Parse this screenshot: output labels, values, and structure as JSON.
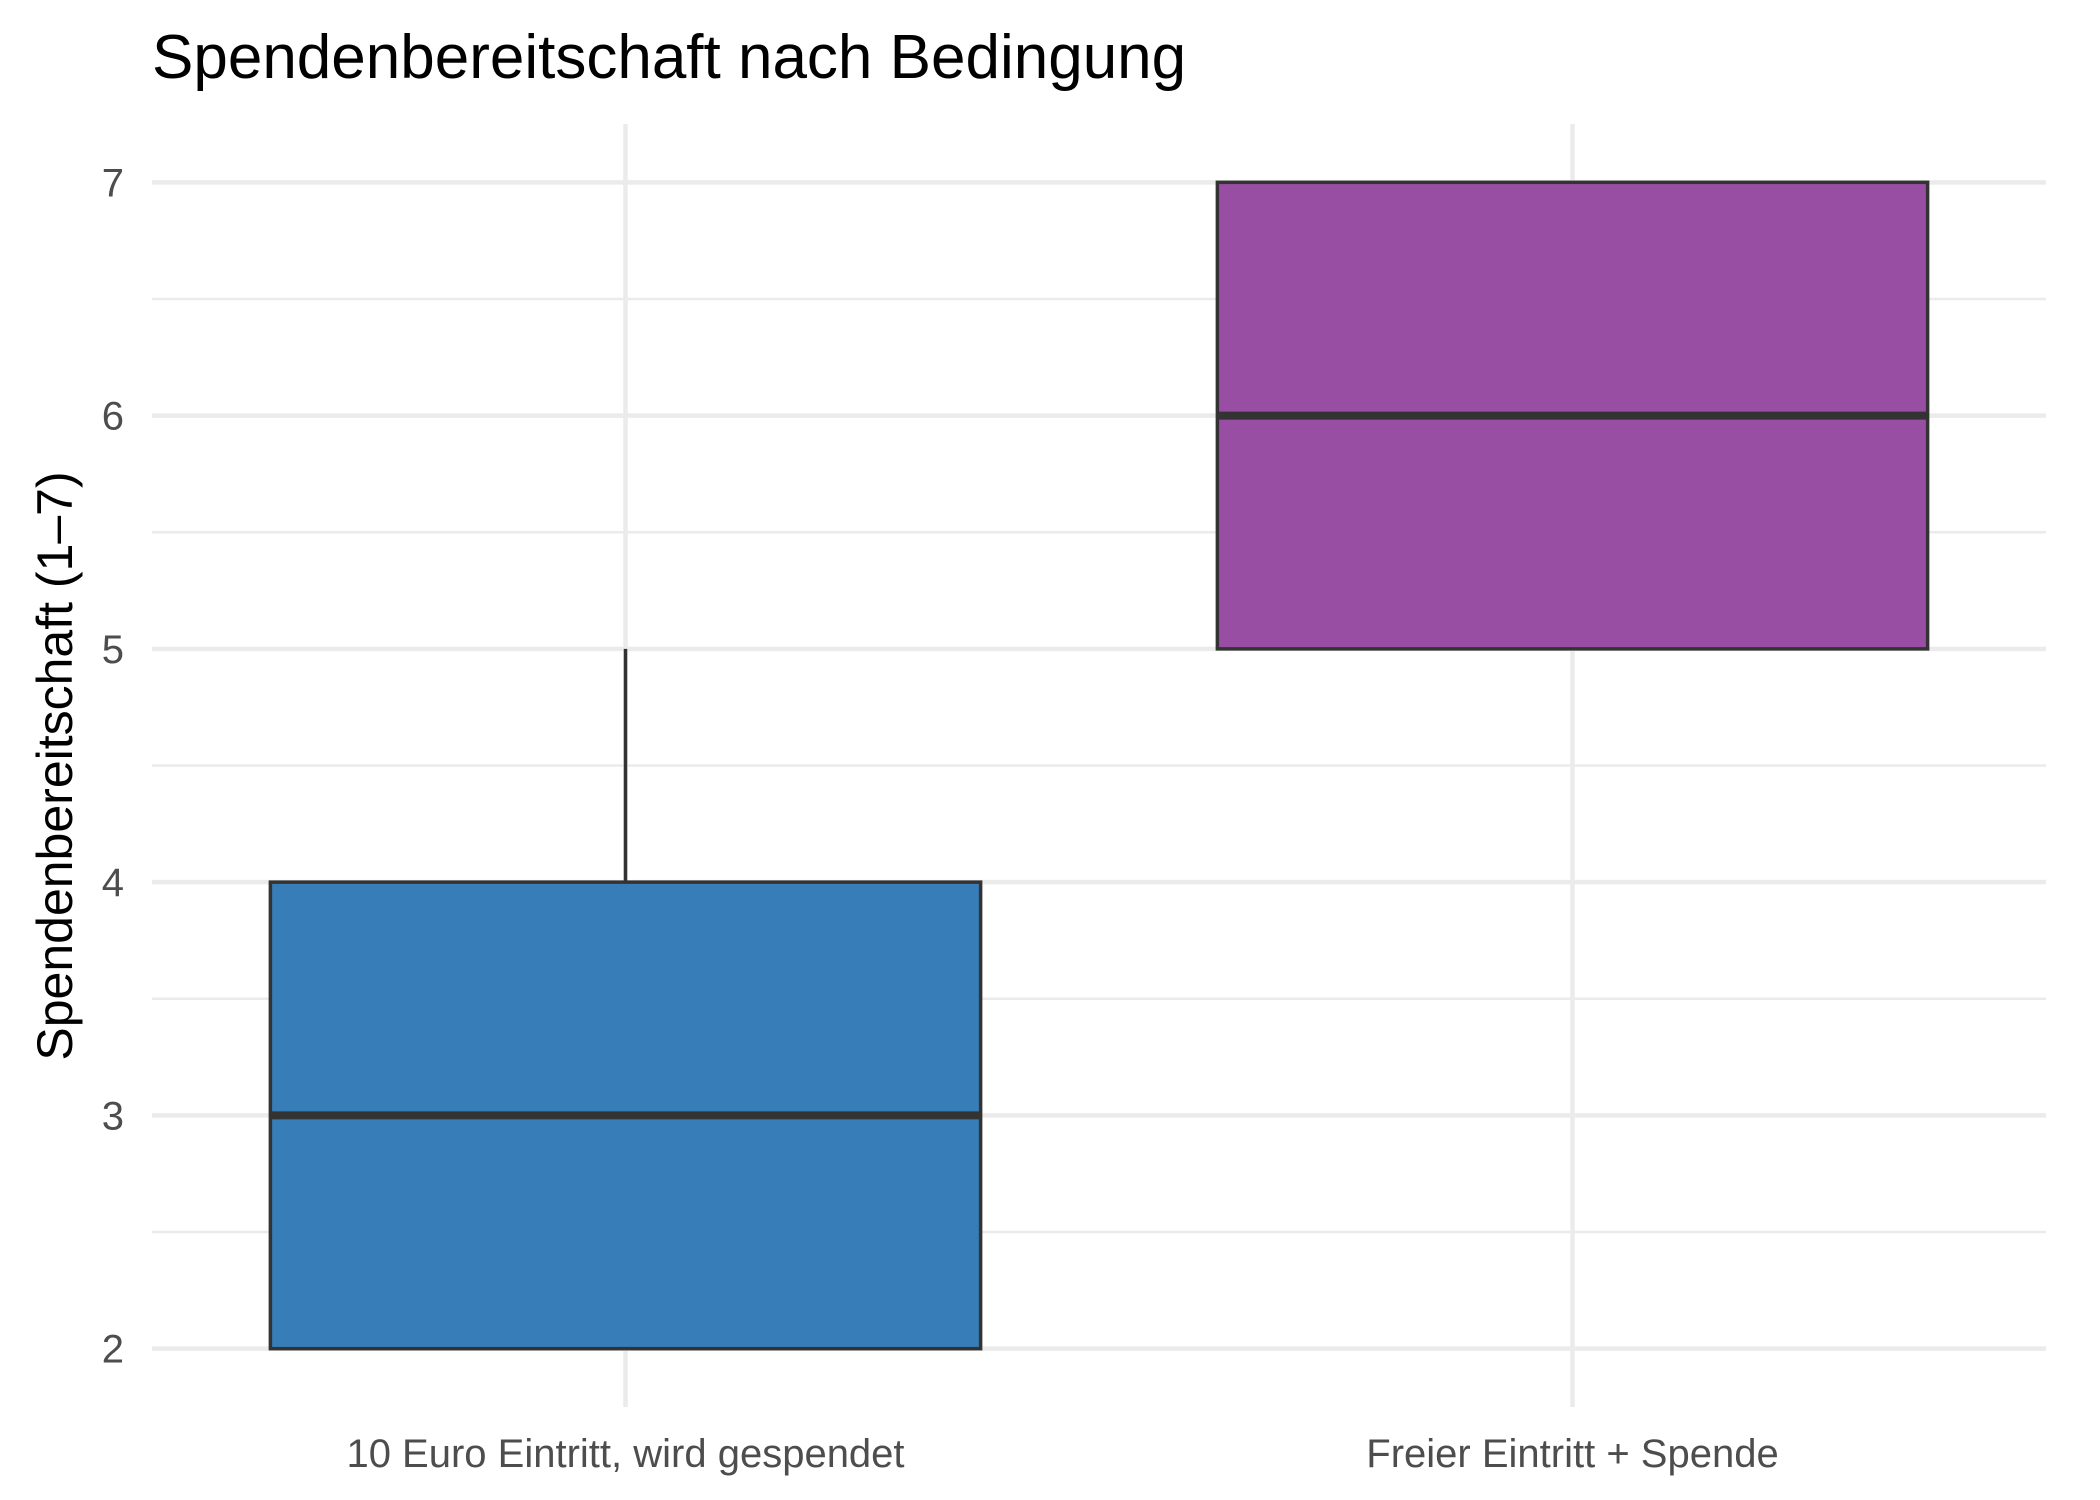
{
  "chart_data": {
    "type": "box",
    "title": "Spendenbereitschaft nach Bedingung",
    "xlabel": "",
    "ylabel": "Spendenbereitschaft (1–7)",
    "categories": [
      "10 Euro Eintritt, wird gespendet",
      "Freier Eintritt + Spende"
    ],
    "ylim": [
      1.75,
      7.25
    ],
    "yticks": [
      2,
      3,
      4,
      5,
      6,
      7
    ],
    "grid": true,
    "legend": "none",
    "boxes": [
      {
        "category": "10 Euro Eintritt, wird gespendet",
        "lower_whisker": 2,
        "q1": 2,
        "median": 3,
        "q3": 4,
        "upper_whisker": 5,
        "color": "#377eb8"
      },
      {
        "category": "Freier Eintritt + Spende",
        "lower_whisker": 5,
        "q1": 5,
        "median": 6,
        "q3": 7,
        "upper_whisker": 7,
        "color": "#984ea3"
      }
    ],
    "outline_color": "#333333",
    "grid_color": "#ebebeb"
  }
}
